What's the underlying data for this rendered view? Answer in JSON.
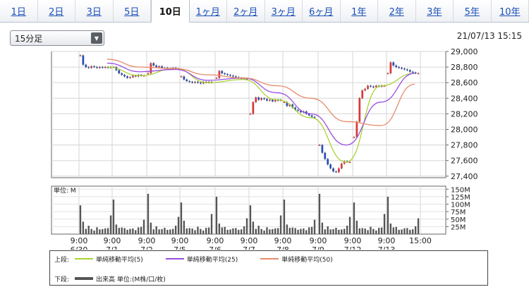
{
  "tabs": [
    {
      "label": "1日",
      "active": false
    },
    {
      "label": "2日",
      "active": false
    },
    {
      "label": "3日",
      "active": false
    },
    {
      "label": "5日",
      "active": false
    },
    {
      "label": "10日",
      "active": true
    },
    {
      "label": "1ヶ月",
      "active": false
    },
    {
      "label": "2ヶ月",
      "active": false
    },
    {
      "label": "3ヶ月",
      "active": false
    },
    {
      "label": "6ヶ月",
      "active": false
    },
    {
      "label": "1年",
      "active": false
    },
    {
      "label": "2年",
      "active": false
    },
    {
      "label": "3年",
      "active": false
    },
    {
      "label": "5年",
      "active": false
    },
    {
      "label": "10年",
      "active": false
    }
  ],
  "interval_select": {
    "value": "15分足"
  },
  "timestamp": "21/07/13 15:15",
  "legend": {
    "upper_label": "上段:",
    "lower_label": "下段:",
    "sma5": "単純移動平均(5)",
    "sma25": "単純移動平均(25)",
    "sma50": "単純移動平均(50)",
    "volume": "出来高 単位:(M株/口/枚)"
  },
  "colors": {
    "sma5": "#a9d232",
    "sma25": "#9a4ee0",
    "sma50": "#e58a6a",
    "volume": "#555555",
    "candle_up": "#d83a3a",
    "candle_down": "#2a4fb8"
  },
  "chart_data": {
    "type": "candlestick",
    "price_axis": {
      "ticks": [
        27400,
        27600,
        27800,
        28000,
        28200,
        28400,
        28600,
        28800,
        29000
      ],
      "tick_labels": [
        "27,400",
        "27,600",
        "27,800",
        "28,000",
        "28,200",
        "28,400",
        "28,600",
        "28,800",
        "29,000"
      ],
      "ylim": [
        27380,
        29000
      ]
    },
    "volume_axis": {
      "unit_label": "単位: M",
      "ticks": [
        25,
        50,
        75,
        100,
        125,
        150
      ],
      "tick_labels": [
        "25M",
        "50M",
        "75M",
        "100M",
        "125M",
        "150M"
      ],
      "ylim": [
        0,
        160
      ]
    },
    "x_ticks": [
      {
        "time": "9:00",
        "date": "6/30"
      },
      {
        "time": "9:00",
        "date": "7/1"
      },
      {
        "time": "9:00",
        "date": "7/2"
      },
      {
        "time": "9:00",
        "date": "7/5"
      },
      {
        "time": "9:00",
        "date": "7/6"
      },
      {
        "time": "9:00",
        "date": "7/7"
      },
      {
        "time": "9:00",
        "date": "7/8"
      },
      {
        "time": "9:00",
        "date": "7/9"
      },
      {
        "time": "9:00",
        "date": "7/12"
      },
      {
        "time": "9:00",
        "date": "7/13"
      },
      {
        "time": "15:00",
        "date": ""
      }
    ],
    "days": [
      {
        "date": "6/30",
        "open": 28950,
        "close": 28800,
        "low": 28770,
        "high": 28960,
        "path": [
          28950,
          28830,
          28800,
          28790,
          28810,
          28800,
          28790,
          28800,
          28795,
          28800,
          28790,
          28800
        ]
      },
      {
        "date": "7/1",
        "open": 28800,
        "close": 28690,
        "low": 28650,
        "high": 28830,
        "path": [
          28800,
          28760,
          28720,
          28700,
          28680,
          28660,
          28670,
          28690,
          28680,
          28700,
          28690,
          28690
        ]
      },
      {
        "date": "7/2",
        "open": 28720,
        "close": 28780,
        "low": 28690,
        "high": 28870,
        "path": [
          28720,
          28850,
          28820,
          28800,
          28810,
          28790,
          28790,
          28780,
          28780,
          28790,
          28780,
          28780
        ]
      },
      {
        "date": "7/5",
        "open": 28680,
        "close": 28600,
        "low": 28570,
        "high": 28720,
        "path": [
          28680,
          28640,
          28620,
          28610,
          28600,
          28610,
          28600,
          28590,
          28610,
          28600,
          28610,
          28600
        ]
      },
      {
        "date": "7/6",
        "open": 28660,
        "close": 28640,
        "low": 28580,
        "high": 28760,
        "path": [
          28660,
          28750,
          28720,
          28710,
          28700,
          28690,
          28680,
          28670,
          28660,
          28650,
          28650,
          28640
        ]
      },
      {
        "date": "7/7",
        "open": 28200,
        "close": 28380,
        "low": 28160,
        "high": 28450,
        "path": [
          28200,
          28350,
          28410,
          28380,
          28400,
          28390,
          28370,
          28380,
          28360,
          28380,
          28370,
          28380
        ]
      },
      {
        "date": "7/8",
        "open": 28350,
        "close": 28150,
        "low": 28100,
        "high": 28400,
        "path": [
          28350,
          28300,
          28320,
          28280,
          28250,
          28240,
          28220,
          28230,
          28200,
          28180,
          28160,
          28150
        ]
      },
      {
        "date": "7/9",
        "open": 27800,
        "close": 27580,
        "low": 27440,
        "high": 27820,
        "path": [
          27800,
          27700,
          27620,
          27550,
          27500,
          27460,
          27450,
          27500,
          27560,
          27590,
          27580,
          27580
        ]
      },
      {
        "date": "7/12",
        "open": 27900,
        "close": 28560,
        "low": 27800,
        "high": 28600,
        "path": [
          27900,
          28100,
          28400,
          28500,
          28520,
          28560,
          28550,
          28540,
          28560,
          28550,
          28560,
          28560
        ]
      },
      {
        "date": "7/13",
        "open": 28720,
        "close": 28720,
        "low": 28620,
        "high": 28890,
        "path": [
          28720,
          28860,
          28820,
          28800,
          28790,
          28780,
          28770,
          28760,
          28740,
          28730,
          28720,
          28720
        ]
      }
    ],
    "series": [
      {
        "name": "単純移動平均(5)",
        "values": [
          28800,
          28690,
          28780,
          28600,
          28640,
          28380,
          28150,
          27580,
          28560,
          28720
        ]
      },
      {
        "name": "単純移動平均(25)",
        "values": [
          28850,
          28740,
          28770,
          28630,
          28660,
          28470,
          28200,
          27800,
          28350,
          28720
        ]
      },
      {
        "name": "単純移動平均(50)",
        "values": [
          28900,
          28800,
          28780,
          28700,
          28660,
          28560,
          28400,
          28100,
          28050,
          28580
        ]
      }
    ],
    "volume_profile": [
      120,
      40,
      20,
      25,
      18,
      15,
      22,
      18,
      15,
      20,
      25,
      60
    ]
  }
}
